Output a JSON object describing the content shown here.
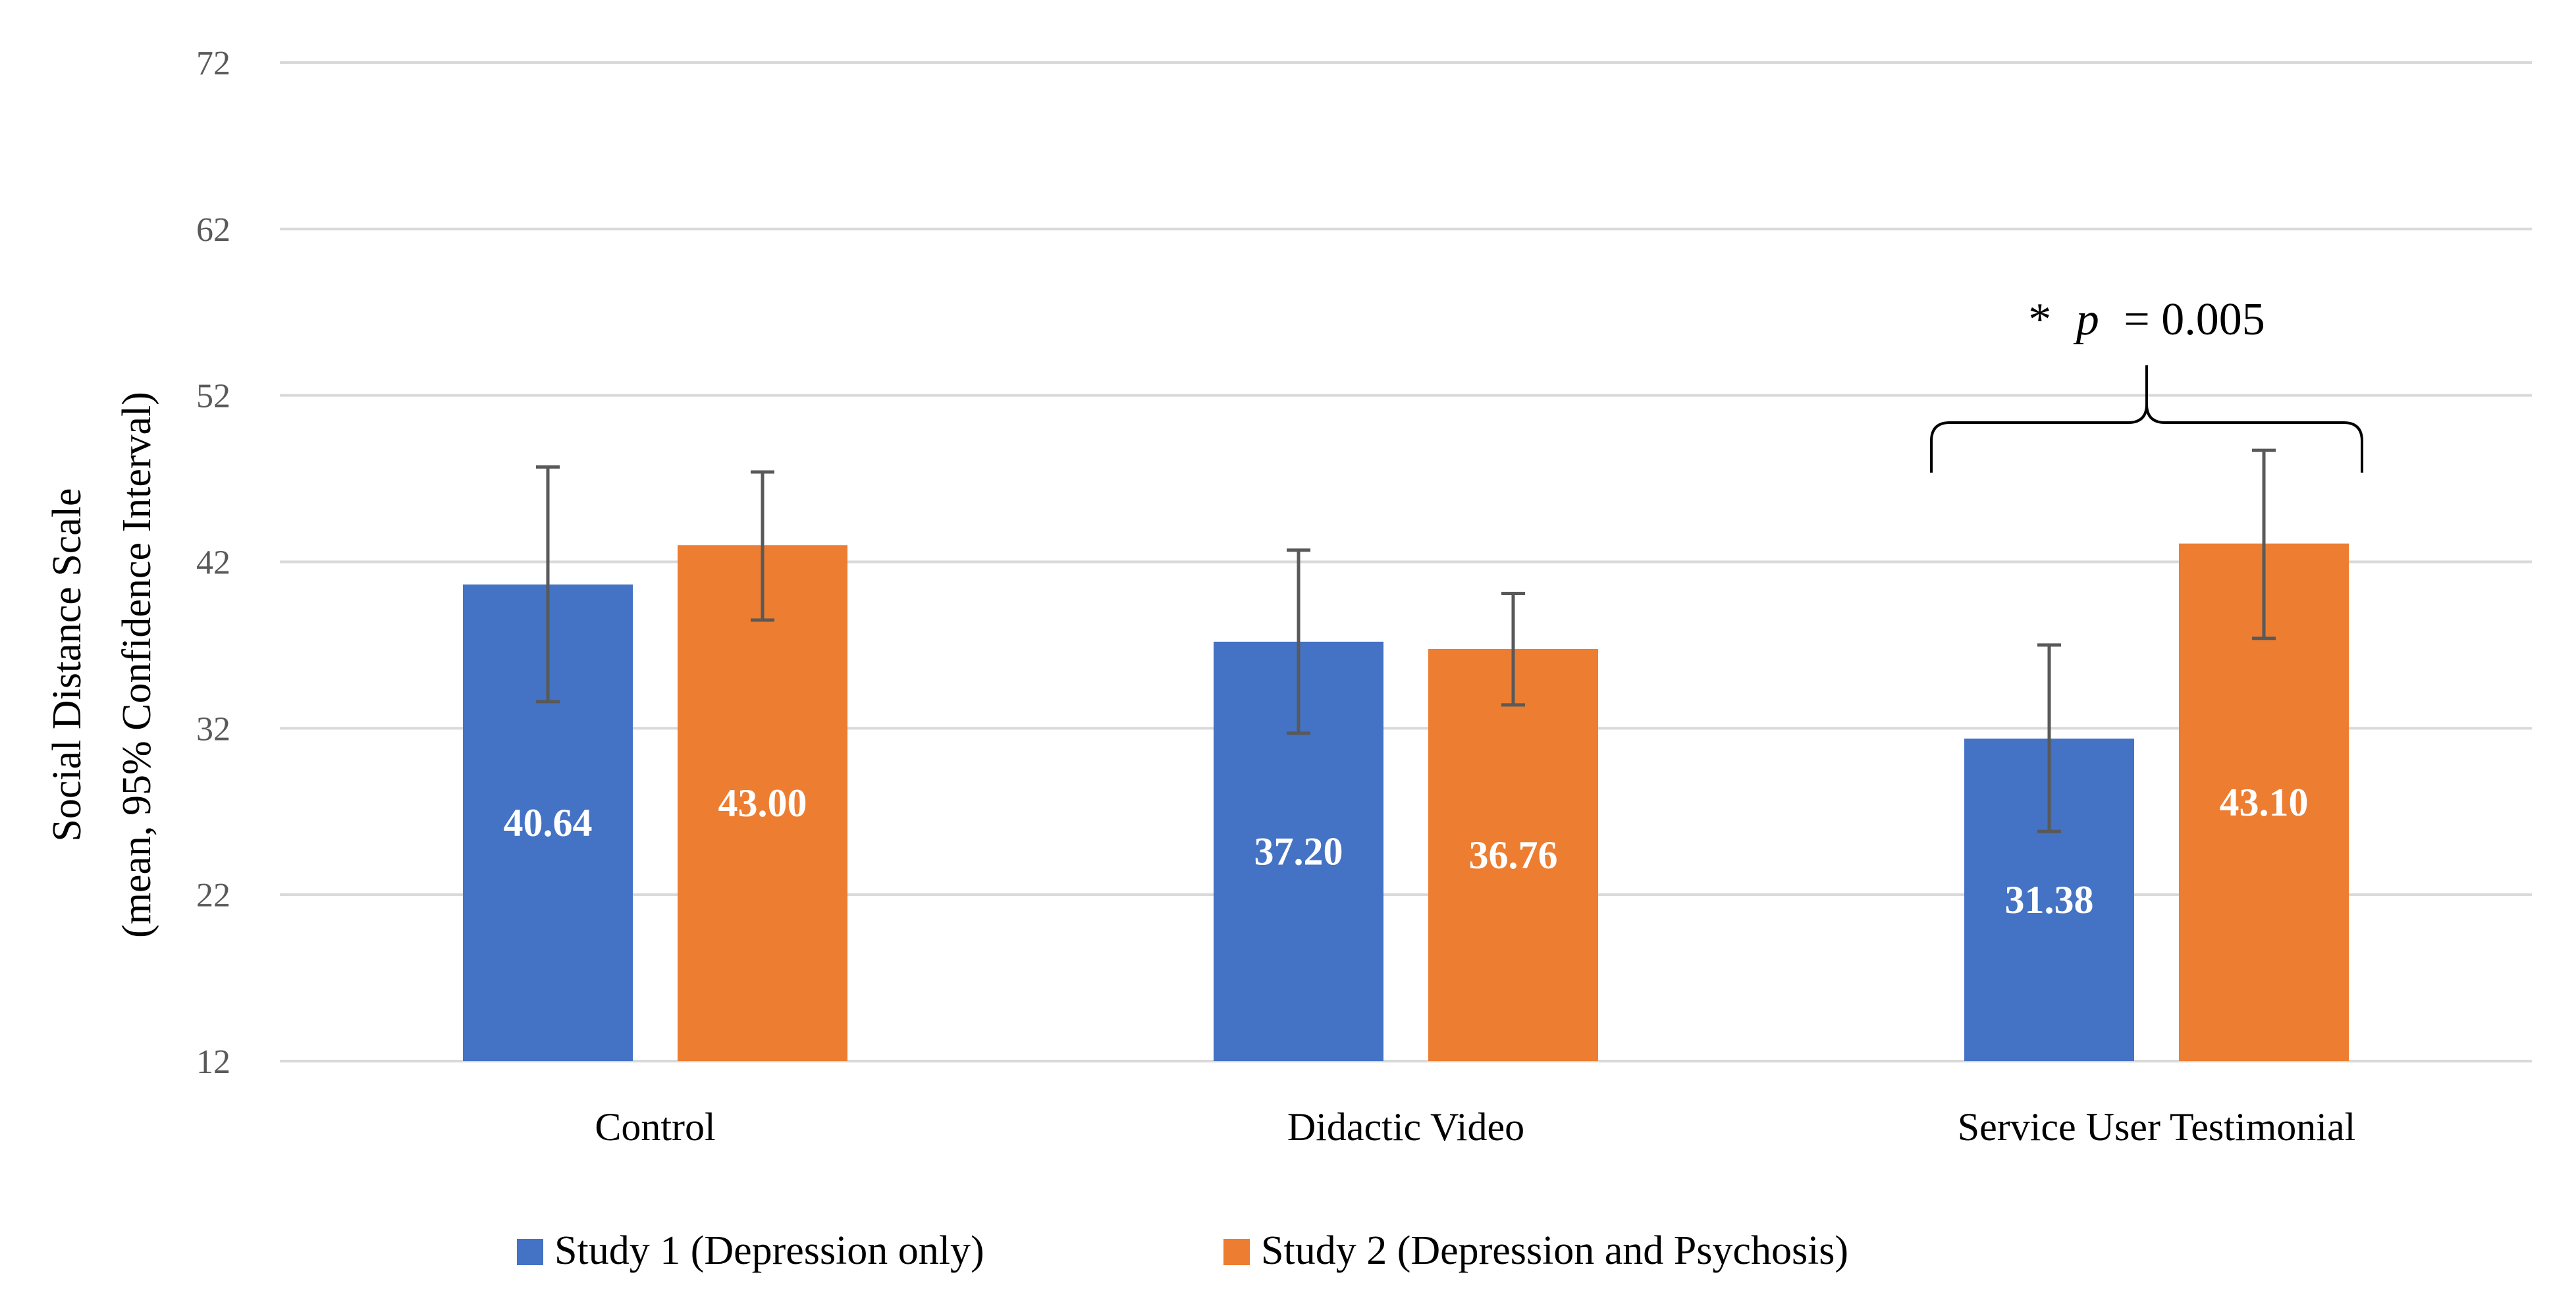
{
  "chart_data": {
    "type": "bar",
    "title": "",
    "xlabel": "",
    "ylabel_line1": "Social Distance Scale",
    "ylabel_line2": "(mean, 95% Confidence Interval)",
    "ylim": [
      12,
      72
    ],
    "yticks": [
      12,
      22,
      32,
      42,
      52,
      62,
      72
    ],
    "grid": true,
    "legend_position": "bottom",
    "categories": [
      "Control",
      "Didactic Video",
      "Service User Testimonial"
    ],
    "series": [
      {
        "name": "Study 1 (Depression only)",
        "color": "#4472C4",
        "values": [
          40.64,
          37.2,
          31.38
        ],
        "labels": [
          "40.64",
          "37.20",
          "31.38"
        ],
        "ci_low": [
          33.6,
          31.7,
          25.8
        ],
        "ci_high": [
          47.7,
          42.7,
          37.0
        ]
      },
      {
        "name": "Study 2 (Depression and Psychosis)",
        "color": "#ED7D31",
        "values": [
          43.0,
          36.76,
          43.1
        ],
        "labels": [
          "43.00",
          "36.76",
          "43.10"
        ],
        "ci_low": [
          38.5,
          33.4,
          37.4
        ],
        "ci_high": [
          47.4,
          40.1,
          48.7
        ]
      }
    ],
    "annotation": {
      "category_index": 2,
      "star": "*",
      "p_symbol": "p",
      "p_rest": "= 0.005"
    },
    "gridline_color": "#D9D9D9",
    "errorbar_color": "#595959"
  }
}
